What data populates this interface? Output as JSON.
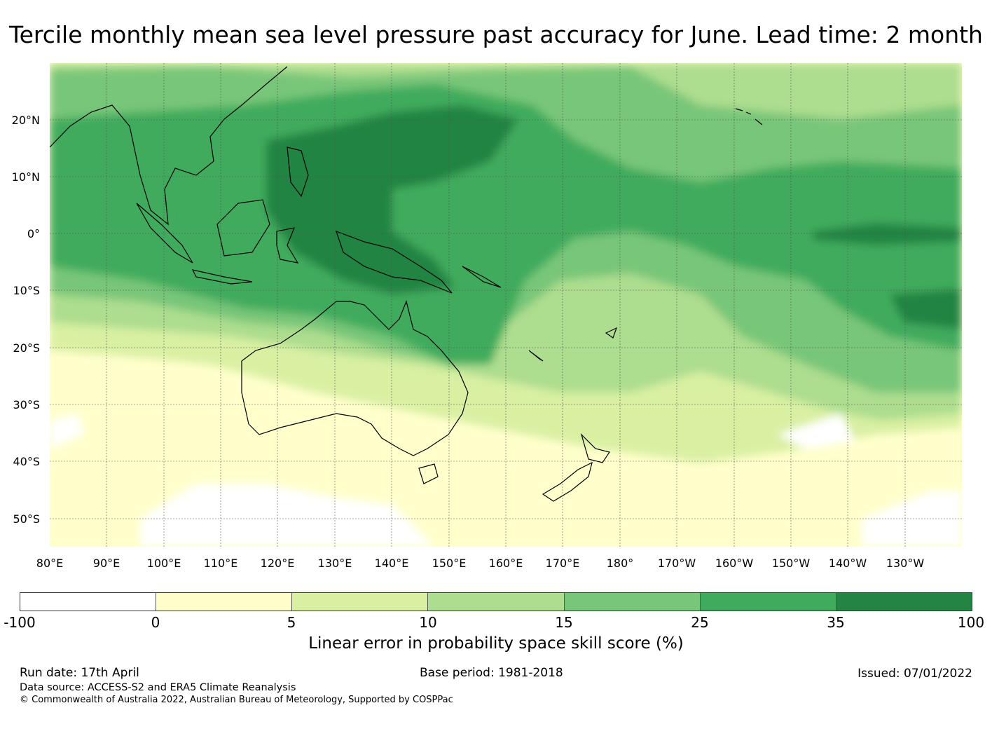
{
  "title": "Tercile monthly mean sea level pressure past accuracy for June. Lead time: 2 month",
  "map": {
    "lat_labels": [
      "20°N",
      "10°N",
      "0°",
      "10°S",
      "20°S",
      "30°S",
      "40°S",
      "50°S"
    ],
    "lon_labels": [
      "80°E",
      "90°E",
      "100°E",
      "110°E",
      "120°E",
      "130°E",
      "140°E",
      "150°E",
      "160°E",
      "170°E",
      "180°",
      "170°W",
      "160°W",
      "150°W",
      "140°W",
      "130°W"
    ],
    "extent": {
      "lon_min": 80,
      "lon_max": 240,
      "lat_min": -55,
      "lat_max": 30
    }
  },
  "colorbar": {
    "ticks": [
      "-100",
      "0",
      "5",
      "10",
      "15",
      "25",
      "35",
      "100"
    ],
    "colors": [
      "#ffffff",
      "#ffffcc",
      "#d9f0a3",
      "#addd8e",
      "#78c679",
      "#41ab5d",
      "#238443"
    ],
    "label": "Linear error in probability space skill score (%)"
  },
  "footer": {
    "run_date": "Run date: 17th April",
    "base_period": "Base period: 1981-2018",
    "issued": "Issued: 07/01/2022",
    "data_source": "Data source: ACCESS-S2 and ERA5 Climate Reanalysis",
    "copyright": "© Commonwealth of Australia 2022, Australian Bureau of Meteorology, Supported by COSPPac"
  }
}
